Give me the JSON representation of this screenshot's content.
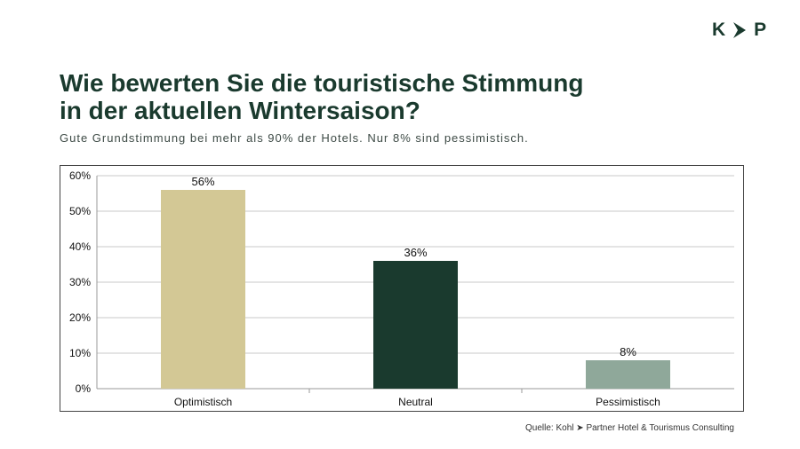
{
  "logo": {
    "left": "K",
    "right": "P",
    "icon": "chevron-right-icon"
  },
  "header": {
    "title_line1": "Wie bewerten Sie die touristische Stimmung",
    "title_line2": "in der aktuellen Wintersaison?",
    "subtitle": "Gute Grundstimmung bei mehr als 90% der Hotels. Nur 8% sind pessimistisch."
  },
  "colors": {
    "primary": "#1a3a2e",
    "bar_optimistisch": "#d3c895",
    "bar_neutral": "#1a3a2e",
    "bar_pessimistisch": "#8fa89a"
  },
  "chart_data": {
    "type": "bar",
    "categories": [
      "Optimistisch",
      "Neutral",
      "Pessimistisch"
    ],
    "values": [
      56,
      36,
      8
    ],
    "data_labels": [
      "56%",
      "36%",
      "8%"
    ],
    "ylim": [
      0,
      60
    ],
    "yticks": [
      0,
      10,
      20,
      30,
      40,
      50,
      60
    ],
    "ytick_labels": [
      "0%",
      "10%",
      "20%",
      "30%",
      "40%",
      "50%",
      "60%"
    ],
    "grid": true,
    "legend": "none"
  },
  "footer": {
    "source_prefix": "Quelle: Kohl",
    "source_suffix": "Partner Hotel & Tourismus Consulting"
  }
}
